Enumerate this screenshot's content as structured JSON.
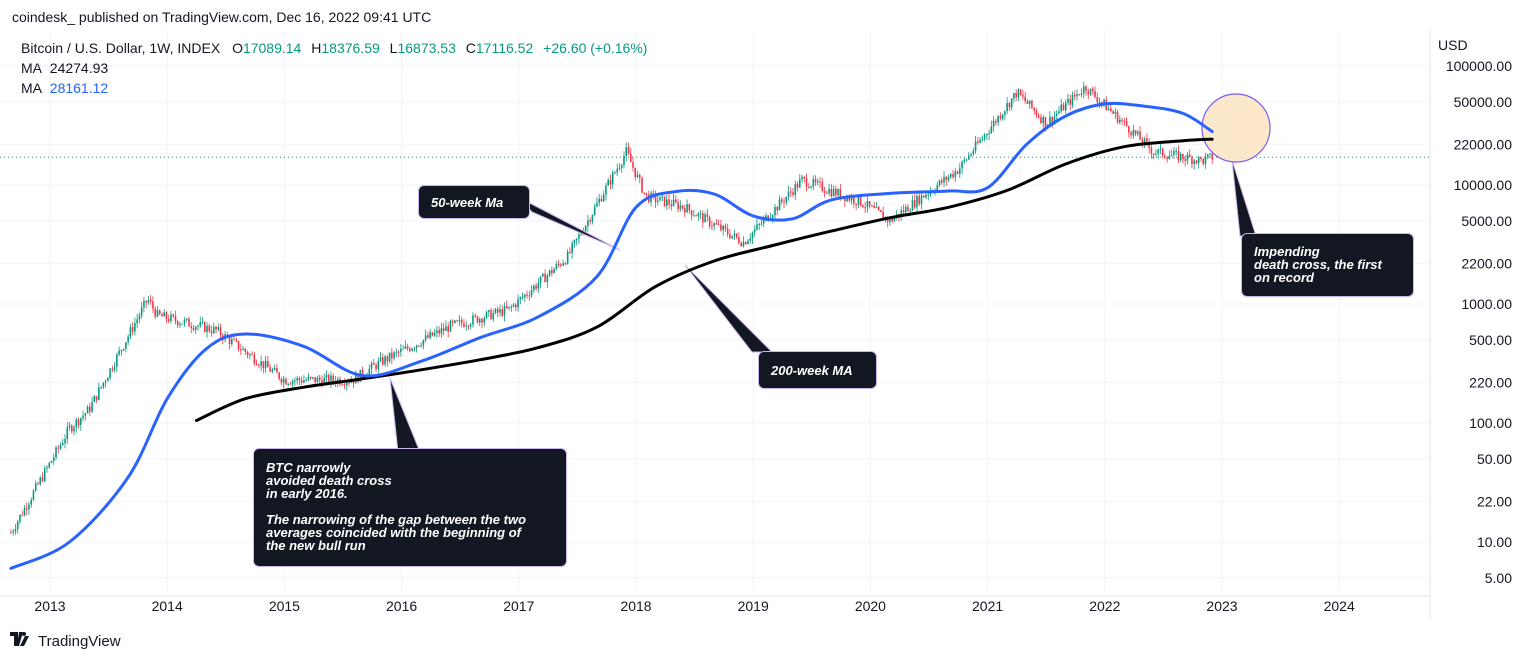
{
  "header": {
    "attribution": "coindesk_ published on TradingView.com, Dec 16, 2022 09:41 UTC"
  },
  "legend": {
    "symbol": "Bitcoin / U.S. Dollar, 1W, INDEX",
    "o_label": "O",
    "o": "17089.14",
    "h_label": "H",
    "h": "18376.59",
    "l_label": "L",
    "l": "16873.53",
    "c_label": "C",
    "c": "17116.52",
    "change": "+26.60 (+0.16%)",
    "ma1_label": "MA",
    "ma1_value": "24274.93",
    "ma2_label": "MA",
    "ma2_value": "28161.12"
  },
  "annotations": {
    "ma50": "50-week Ma",
    "ma200": "200-week MA",
    "btc_l1": "BTC narrowly",
    "btc_l2": "avoided death cross",
    "btc_l3": "in early 2016.",
    "btc_l4": "The narrowing of the gap between the two",
    "btc_l5": "averages coincided with the beginning of",
    "btc_l6": "the new bull run",
    "death_l1": "Impending",
    "death_l2": "death cross, the first",
    "death_l3": "on record"
  },
  "footer": {
    "brand": "TradingView"
  },
  "colors": {
    "up": "#089981",
    "down": "#f23645",
    "ma50": "#2962ff",
    "ma200": "#000000",
    "last_price_line": "#089981",
    "highlight": "#fde5c5"
  },
  "chart_data": {
    "type": "line",
    "y_scale": "log",
    "ylabel": "USD",
    "xlim": [
      "2012-09",
      "2024-08"
    ],
    "ylim": [
      4,
      130000
    ],
    "grid": true,
    "x_ticks": [
      "2013",
      "2014",
      "2015",
      "2016",
      "2017",
      "2018",
      "2019",
      "2020",
      "2021",
      "2022",
      "2023",
      "2024"
    ],
    "y_ticks": [
      "5.00",
      "10.00",
      "22.00",
      "50.00",
      "100.00",
      "220.00",
      "500.00",
      "1000.00",
      "2200.00",
      "5000.00",
      "10000.00",
      "22000.00",
      "50000.00",
      "100000.00"
    ],
    "last_price": 17116.52,
    "series": [
      {
        "name": "MA",
        "period_weeks": 200,
        "value": 24274.93,
        "x": [
          "2014-04",
          "2014-09",
          "2015-03",
          "2015-09",
          "2016-03",
          "2016-09",
          "2017-03",
          "2017-09",
          "2018-03",
          "2018-09",
          "2019-03",
          "2019-09",
          "2020-03",
          "2020-09",
          "2021-03",
          "2021-09",
          "2022-03",
          "2022-09",
          "2022-12"
        ],
        "y": [
          105,
          160,
          200,
          235,
          280,
          340,
          430,
          640,
          1400,
          2300,
          3100,
          4100,
          5300,
          6500,
          9000,
          15000,
          21000,
          23500,
          24275
        ]
      },
      {
        "name": "MA",
        "period_weeks": 50,
        "value": 28161.12,
        "x": [
          "2012-09",
          "2013-03",
          "2013-09",
          "2014-01",
          "2014-05",
          "2014-09",
          "2015-03",
          "2015-09",
          "2016-03",
          "2016-09",
          "2017-03",
          "2017-09",
          "2018-01",
          "2018-05",
          "2018-09",
          "2019-01",
          "2019-05",
          "2019-09",
          "2020-03",
          "2020-09",
          "2021-01",
          "2021-05",
          "2021-09",
          "2022-01",
          "2022-05",
          "2022-09",
          "2022-12"
        ],
        "y": [
          6,
          10,
          35,
          160,
          420,
          560,
          440,
          250,
          330,
          520,
          780,
          1700,
          6500,
          8800,
          8400,
          5500,
          5200,
          7500,
          8500,
          8900,
          9500,
          22000,
          38000,
          48000,
          46000,
          40000,
          28161
        ]
      },
      {
        "name": "BTCUSD",
        "x": [
          "2012-09",
          "2013-03",
          "2013-05",
          "2013-11",
          "2013-12",
          "2014-06",
          "2015-01",
          "2015-08",
          "2015-11",
          "2016-06",
          "2016-12",
          "2017-06",
          "2017-12",
          "2018-02",
          "2018-06",
          "2018-12",
          "2019-06",
          "2019-12",
          "2020-03",
          "2020-10",
          "2021-04",
          "2021-07",
          "2021-11",
          "2022-06",
          "2022-11",
          "2022-12"
        ],
        "y": [
          12,
          90,
          130,
          1100,
          800,
          600,
          230,
          230,
          330,
          650,
          900,
          2500,
          19000,
          8000,
          6500,
          3300,
          11000,
          7200,
          5000,
          13500,
          60000,
          33000,
          67000,
          19000,
          16000,
          17116
        ]
      }
    ],
    "annotations": [
      {
        "text": "50-week Ma",
        "points_to": "50-week MA"
      },
      {
        "text": "200-week MA",
        "points_to": "200-week MA"
      },
      {
        "text": "BTC narrowly avoided death cross in early 2016. The narrowing of the gap between the two averages coincided with the beginning of the new bull run",
        "at_x": "2016-01"
      },
      {
        "text": "Impending death cross, the first on record",
        "at_x": "2022-12"
      }
    ]
  }
}
